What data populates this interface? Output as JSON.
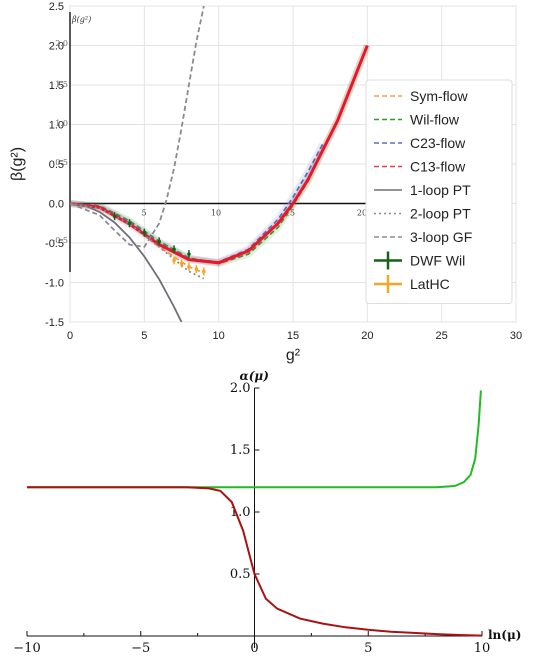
{
  "chart_data": [
    {
      "type": "line",
      "xlabel": "g²",
      "ylabel": "β(g²)",
      "xlim": [
        0,
        30
      ],
      "ylim": [
        -1.5,
        2.5
      ],
      "x_ticks": [
        "0",
        "5",
        "10",
        "15",
        "20",
        "25",
        "30"
      ],
      "y_ticks": [
        "-1.5",
        "-1.0",
        "-0.5",
        "0.0",
        "0.5",
        "1.0",
        "1.5",
        "2.0",
        "2.5"
      ],
      "grid": true,
      "legend_position": "right",
      "series": [
        {
          "name": "Sym-flow",
          "color": "#f0a040",
          "style": "dashed",
          "x": [
            0,
            2,
            4,
            6,
            8,
            9
          ],
          "y": [
            0,
            -0.06,
            -0.25,
            -0.55,
            -0.8,
            -0.88
          ]
        },
        {
          "name": "Wil-flow",
          "color": "#2ca02c",
          "style": "dashed",
          "x": [
            0,
            2,
            4,
            6,
            8,
            10,
            12,
            14,
            15,
            16,
            18,
            20
          ],
          "y": [
            0,
            -0.03,
            -0.22,
            -0.48,
            -0.69,
            -0.76,
            -0.64,
            -0.3,
            -0.02,
            0.28,
            1.05,
            2.0
          ]
        },
        {
          "name": "C23-flow",
          "color": "#5a6ec8",
          "style": "dashed",
          "x": [
            0,
            2,
            4,
            6,
            8,
            10,
            12,
            14,
            15,
            16,
            17
          ],
          "y": [
            0,
            -0.04,
            -0.24,
            -0.5,
            -0.7,
            -0.74,
            -0.58,
            -0.2,
            0.08,
            0.4,
            0.75
          ]
        },
        {
          "name": "C13-flow",
          "color": "#e04050",
          "style": "dashed",
          "x": [
            0,
            2,
            4,
            6,
            8,
            10,
            12,
            14,
            15,
            16,
            18,
            20
          ],
          "y": [
            0,
            -0.05,
            -0.26,
            -0.52,
            -0.71,
            -0.75,
            -0.6,
            -0.25,
            0.0,
            0.3,
            1.05,
            2.0
          ]
        },
        {
          "name": "1-loop PT",
          "color": "#6f6f78",
          "style": "solid",
          "x": [
            0,
            1,
            2,
            3,
            4,
            5,
            6,
            7,
            7.5
          ],
          "y": [
            0,
            -0.027,
            -0.107,
            -0.24,
            -0.43,
            -0.67,
            -0.96,
            -1.31,
            -1.5
          ]
        },
        {
          "name": "2-loop PT",
          "color": "#8a8a92",
          "style": "dotted",
          "x": [
            0,
            2,
            4,
            6,
            8,
            9
          ],
          "y": [
            0,
            -0.06,
            -0.26,
            -0.55,
            -0.86,
            -0.95
          ]
        },
        {
          "name": "3-loop GF",
          "color": "#8a8a92",
          "style": "dashed",
          "x": [
            0,
            2,
            3,
            4,
            5,
            6,
            6.5,
            7,
            7.5,
            8,
            8.5,
            9
          ],
          "y": [
            0,
            -0.15,
            -0.34,
            -0.52,
            -0.55,
            -0.25,
            0.05,
            0.45,
            0.95,
            1.5,
            2.05,
            2.5
          ]
        },
        {
          "name": "DWF Wil",
          "color": "#146414",
          "style": "errorbar",
          "x": [
            3,
            4,
            5,
            6,
            7,
            8
          ],
          "y": [
            -0.16,
            -0.25,
            -0.37,
            -0.48,
            -0.58,
            -0.64
          ]
        },
        {
          "name": "LatHC",
          "color": "#f5a623",
          "style": "errorbar",
          "x": [
            7,
            7.5,
            8,
            8.5,
            9
          ],
          "y": [
            -0.72,
            -0.76,
            -0.8,
            -0.83,
            -0.86
          ]
        }
      ],
      "inset": {
        "xlabel": "g²",
        "ylabel": "β(g²)",
        "x_ticks": [
          "5",
          "10",
          "15",
          "20"
        ],
        "y_ticks": [
          "-0.5",
          "0.5",
          "1.0",
          "1.5",
          "2.0"
        ]
      }
    },
    {
      "type": "line",
      "xlabel": "ln(μ)",
      "ylabel": "α(μ)",
      "xlim": [
        -10,
        10
      ],
      "ylim": [
        0,
        2
      ],
      "x_ticks": [
        "-10",
        "-5",
        "0",
        "5",
        "10"
      ],
      "y_ticks": [
        "0.5",
        "1.0",
        "1.5",
        "2.0"
      ],
      "grid": false,
      "series": [
        {
          "color": "#22bb22",
          "x": [
            -10,
            -2,
            0,
            5,
            8,
            8.8,
            9.2,
            9.5,
            9.7,
            9.85,
            9.95
          ],
          "y": [
            1.2,
            1.2,
            1.2,
            1.2,
            1.2,
            1.21,
            1.24,
            1.3,
            1.43,
            1.7,
            1.98
          ]
        },
        {
          "color": "#aa1111",
          "x": [
            -10,
            -3,
            -2,
            -1.5,
            -1,
            -0.5,
            0,
            0.5,
            1,
            2,
            3,
            4,
            5,
            6,
            7,
            8,
            9,
            10
          ],
          "y": [
            1.2,
            1.2,
            1.19,
            1.17,
            1.08,
            0.85,
            0.5,
            0.3,
            0.22,
            0.14,
            0.1,
            0.07,
            0.05,
            0.035,
            0.025,
            0.015,
            0.008,
            0.003
          ]
        }
      ]
    }
  ]
}
